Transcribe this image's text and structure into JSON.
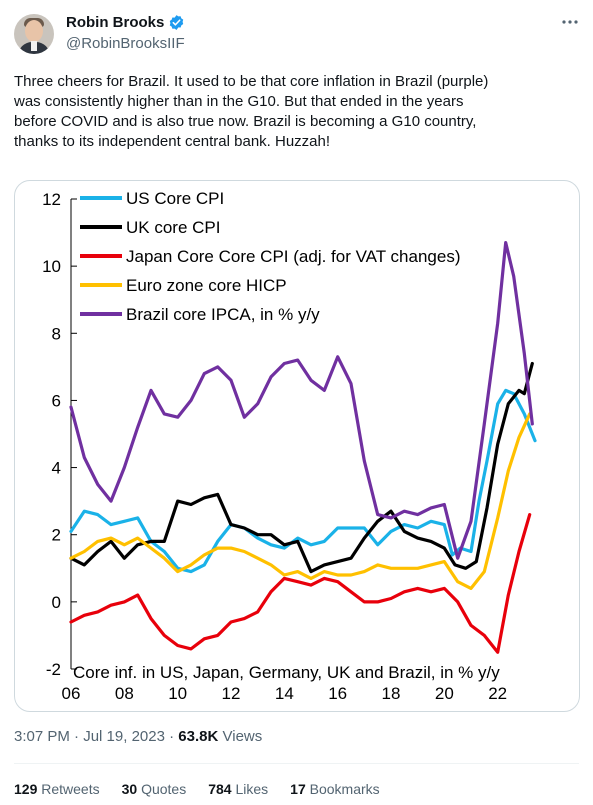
{
  "author": {
    "display_name": "Robin Brooks",
    "handle": "@RobinBrooksIIF",
    "verified": true,
    "icons": {
      "verified": "verified-badge-icon",
      "more": "more-options-icon"
    }
  },
  "tweet": {
    "text_lines": [
      "Three cheers for Brazil. It used to be that core inflation in Brazil (purple)",
      "was consistently higher than in the G10. But that ended in the years",
      "before COVID and is also true now. Brazil is becoming a G10 country,",
      "thanks to its independent central bank. Huzzah!"
    ],
    "time": "3:07 PM",
    "date": "Jul 19, 2023",
    "views_count": "63.8K",
    "views_label": "Views"
  },
  "engagement": {
    "retweets": "129",
    "retweets_label": "Retweets",
    "quotes": "30",
    "quotes_label": "Quotes",
    "likes": "784",
    "likes_label": "Likes",
    "bookmarks": "17",
    "bookmarks_label": "Bookmarks"
  },
  "colors": {
    "text": "#0f1419",
    "muted": "#536471",
    "verified": "#1d9bf0"
  },
  "chart_data": {
    "type": "line",
    "title": "",
    "xlabel": "",
    "ylabel": "",
    "annotation": "Core inf. in US, Japan, Germany, UK and Brazil, in % y/y",
    "xlim": [
      2006,
      2024
    ],
    "ylim": [
      -2,
      12
    ],
    "x_ticks": [
      2006,
      2008,
      2010,
      2012,
      2014,
      2016,
      2018,
      2020,
      2022
    ],
    "x_tick_labels": [
      "06",
      "08",
      "10",
      "12",
      "14",
      "16",
      "18",
      "20",
      "22"
    ],
    "y_ticks": [
      -2,
      0,
      2,
      4,
      6,
      8,
      10,
      12
    ],
    "y_tick_labels": [
      "-2",
      "0",
      "2",
      "4",
      "6",
      "8",
      "10",
      "12"
    ],
    "grid": false,
    "legend_position": "top-left",
    "series": [
      {
        "name": "US Core CPI",
        "color": "#1ab2e8",
        "x": [
          2006.0,
          2006.5,
          2007.0,
          2007.5,
          2008.0,
          2008.5,
          2009.0,
          2009.5,
          2010.0,
          2010.5,
          2011.0,
          2011.5,
          2012.0,
          2012.5,
          2013.0,
          2013.5,
          2014.0,
          2014.5,
          2015.0,
          2015.5,
          2016.0,
          2016.5,
          2017.0,
          2017.5,
          2018.0,
          2018.5,
          2019.0,
          2019.5,
          2020.0,
          2020.3,
          2020.6,
          2021.0,
          2021.3,
          2021.6,
          2022.0,
          2022.3,
          2022.6,
          2023.0,
          2023.4
        ],
        "y": [
          2.1,
          2.7,
          2.6,
          2.3,
          2.4,
          2.5,
          1.8,
          1.5,
          1.0,
          0.9,
          1.1,
          1.8,
          2.3,
          2.2,
          1.9,
          1.7,
          1.6,
          1.9,
          1.7,
          1.8,
          2.2,
          2.2,
          2.2,
          1.7,
          2.1,
          2.3,
          2.2,
          2.4,
          2.3,
          1.4,
          1.6,
          1.5,
          3.0,
          4.2,
          5.9,
          6.3,
          6.2,
          5.6,
          4.8
        ]
      },
      {
        "name": "UK core CPI",
        "color": "#000000",
        "x": [
          2006.0,
          2006.5,
          2007.0,
          2007.5,
          2008.0,
          2008.5,
          2009.0,
          2009.5,
          2010.0,
          2010.5,
          2011.0,
          2011.5,
          2012.0,
          2012.5,
          2013.0,
          2013.5,
          2014.0,
          2014.5,
          2015.0,
          2015.5,
          2016.0,
          2016.5,
          2017.0,
          2017.5,
          2018.0,
          2018.5,
          2019.0,
          2019.5,
          2020.0,
          2020.4,
          2020.8,
          2021.2,
          2021.6,
          2022.0,
          2022.4,
          2022.8,
          2023.0,
          2023.3
        ],
        "y": [
          1.3,
          1.1,
          1.5,
          1.8,
          1.3,
          1.7,
          1.8,
          1.8,
          3.0,
          2.9,
          3.1,
          3.2,
          2.3,
          2.2,
          2.0,
          2.0,
          1.7,
          1.8,
          0.9,
          1.1,
          1.2,
          1.3,
          1.9,
          2.4,
          2.7,
          2.1,
          1.9,
          1.8,
          1.6,
          1.1,
          1.0,
          1.2,
          2.8,
          4.7,
          5.9,
          6.3,
          6.2,
          7.1
        ]
      },
      {
        "name": "Japan Core Core CPI (adj. for VAT changes)",
        "color": "#e8000b",
        "x": [
          2006.0,
          2006.5,
          2007.0,
          2007.5,
          2008.0,
          2008.5,
          2009.0,
          2009.5,
          2010.0,
          2010.5,
          2011.0,
          2011.5,
          2012.0,
          2012.5,
          2013.0,
          2013.5,
          2014.0,
          2014.5,
          2015.0,
          2015.5,
          2016.0,
          2016.5,
          2017.0,
          2017.5,
          2018.0,
          2018.5,
          2019.0,
          2019.5,
          2020.0,
          2020.5,
          2021.0,
          2021.5,
          2022.0,
          2022.4,
          2022.8,
          2023.2
        ],
        "y": [
          -0.6,
          -0.4,
          -0.3,
          -0.1,
          0.0,
          0.2,
          -0.5,
          -1.0,
          -1.3,
          -1.4,
          -1.1,
          -1.0,
          -0.6,
          -0.5,
          -0.3,
          0.3,
          0.7,
          0.6,
          0.5,
          0.7,
          0.6,
          0.3,
          0.0,
          0.0,
          0.1,
          0.3,
          0.4,
          0.3,
          0.4,
          0.0,
          -0.7,
          -1.0,
          -1.5,
          0.2,
          1.5,
          2.6
        ]
      },
      {
        "name": "Euro zone core HICP",
        "color": "#ffc000",
        "x": [
          2006.0,
          2006.5,
          2007.0,
          2007.5,
          2008.0,
          2008.5,
          2009.0,
          2009.5,
          2010.0,
          2010.5,
          2011.0,
          2011.5,
          2012.0,
          2012.5,
          2013.0,
          2013.5,
          2014.0,
          2014.5,
          2015.0,
          2015.5,
          2016.0,
          2016.5,
          2017.0,
          2017.5,
          2018.0,
          2018.5,
          2019.0,
          2019.5,
          2020.0,
          2020.5,
          2021.0,
          2021.5,
          2022.0,
          2022.4,
          2022.8,
          2023.2
        ],
        "y": [
          1.3,
          1.5,
          1.8,
          1.9,
          1.7,
          1.9,
          1.6,
          1.3,
          0.9,
          1.1,
          1.4,
          1.6,
          1.6,
          1.5,
          1.3,
          1.1,
          0.8,
          0.9,
          0.7,
          0.9,
          0.8,
          0.8,
          0.9,
          1.1,
          1.0,
          1.0,
          1.0,
          1.1,
          1.2,
          0.6,
          0.4,
          0.9,
          2.5,
          3.9,
          4.9,
          5.6
        ]
      },
      {
        "name": "Brazil core IPCA, in % y/y",
        "color": "#7030a0",
        "x": [
          2006.0,
          2006.5,
          2007.0,
          2007.5,
          2008.0,
          2008.5,
          2009.0,
          2009.5,
          2010.0,
          2010.5,
          2011.0,
          2011.5,
          2012.0,
          2012.5,
          2013.0,
          2013.5,
          2014.0,
          2014.5,
          2015.0,
          2015.5,
          2016.0,
          2016.5,
          2017.0,
          2017.5,
          2018.0,
          2018.5,
          2019.0,
          2019.5,
          2020.0,
          2020.5,
          2021.0,
          2021.5,
          2022.0,
          2022.3,
          2022.6,
          2023.0,
          2023.3
        ],
        "y": [
          5.8,
          4.3,
          3.5,
          3.0,
          4.0,
          5.2,
          6.3,
          5.6,
          5.5,
          6.0,
          6.8,
          7.0,
          6.6,
          5.5,
          5.9,
          6.7,
          7.1,
          7.2,
          6.6,
          6.3,
          7.3,
          6.5,
          4.2,
          2.6,
          2.5,
          2.7,
          2.6,
          2.8,
          2.9,
          1.3,
          2.4,
          5.3,
          8.3,
          10.7,
          9.7,
          7.4,
          5.3
        ]
      }
    ]
  }
}
